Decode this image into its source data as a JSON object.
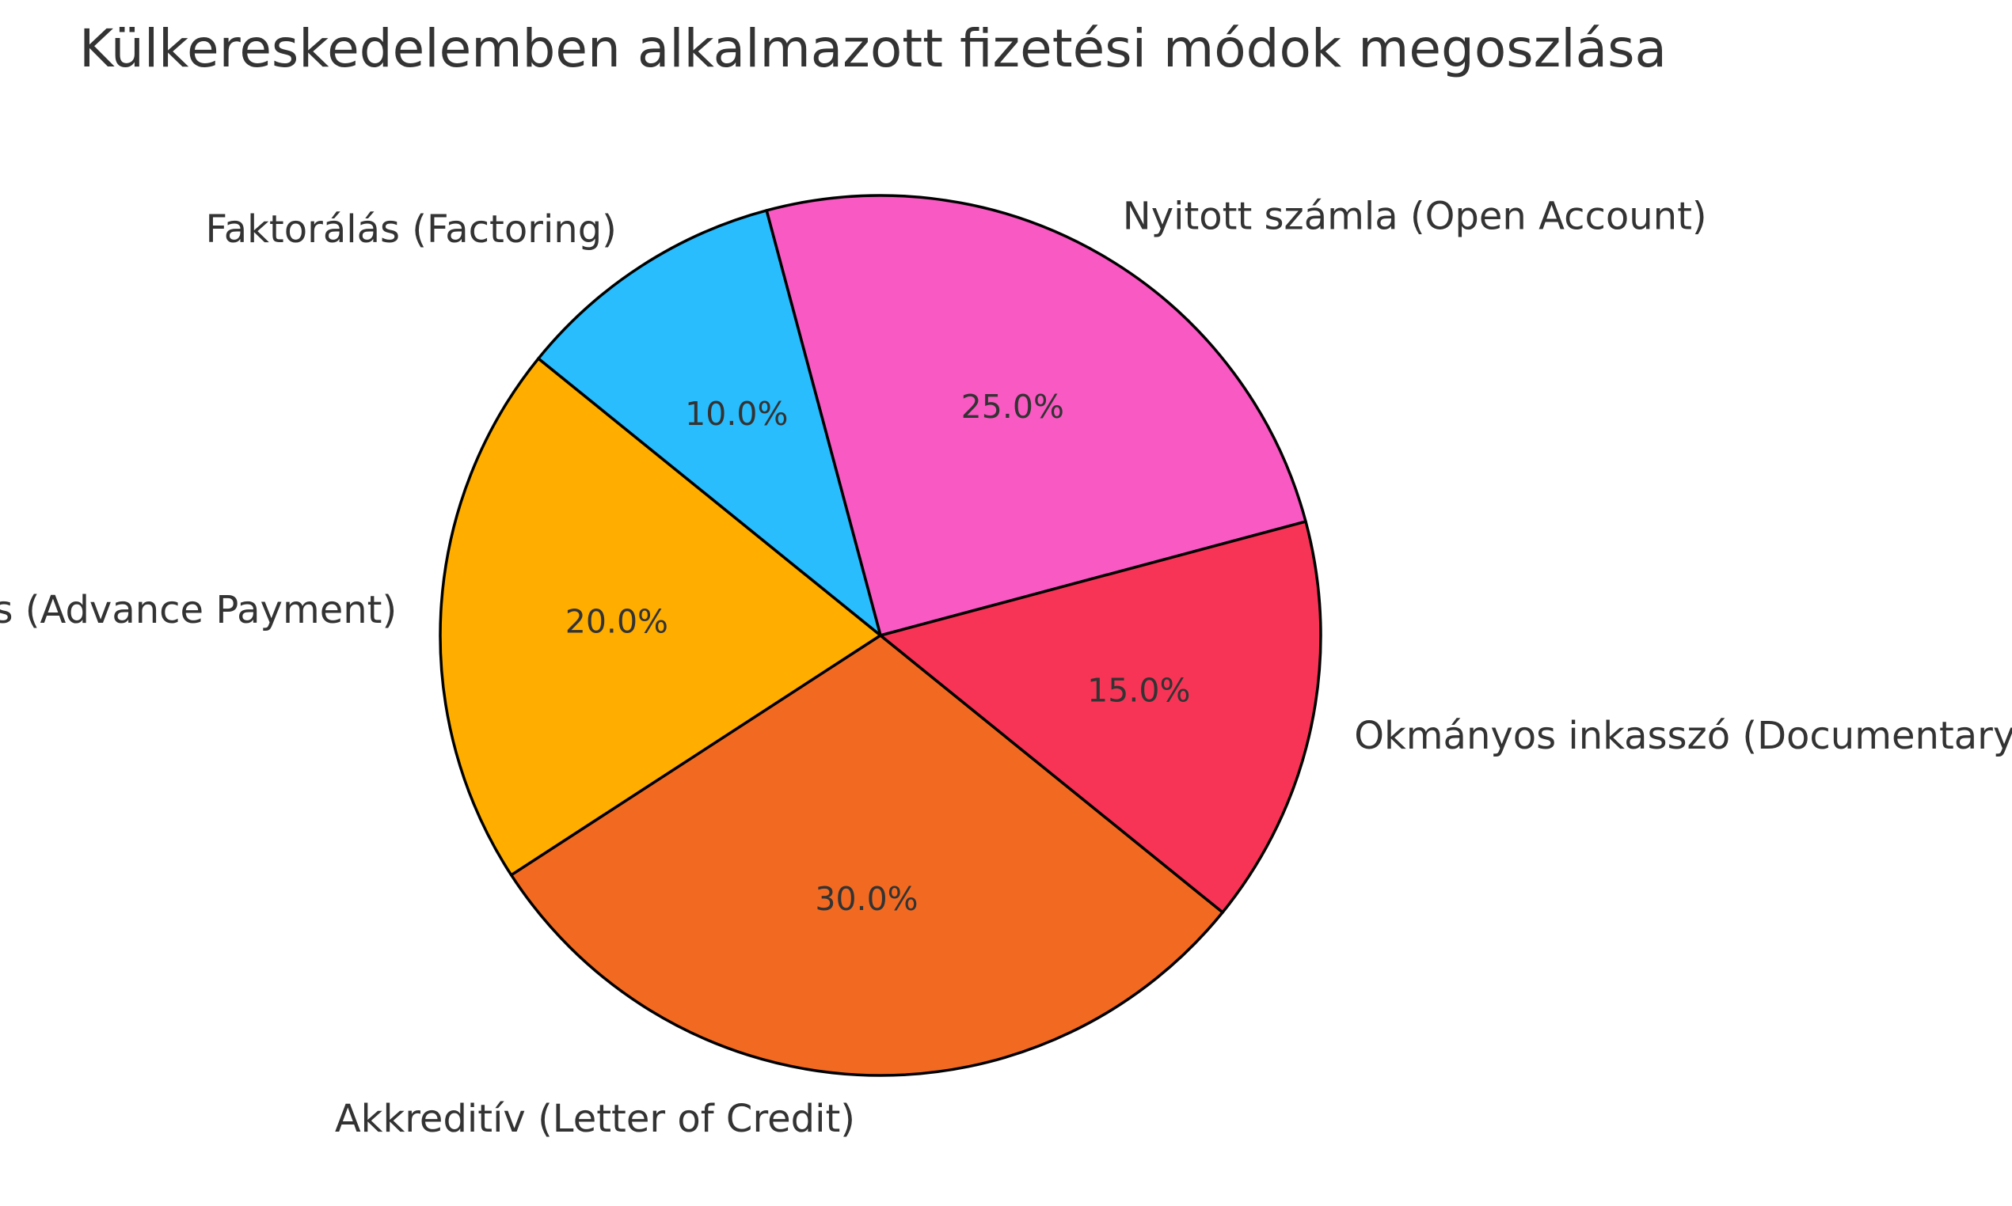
{
  "chart_data": {
    "type": "pie",
    "title": "Külkereskedelemben alkalmazott fizetési módok megoszlása",
    "slices": [
      {
        "label": "Nyitott számla (Open Account)",
        "value": 25.0,
        "pct_label": "25.0%",
        "color": "#F859C2"
      },
      {
        "label": "Faktorálás (Factoring)",
        "value": 10.0,
        "pct_label": "10.0%",
        "color": "#29BDFD"
      },
      {
        "label": "Előre fizetés (Advance Payment)",
        "value": 20.0,
        "pct_label": "20.0%",
        "color": "#FFAE00"
      },
      {
        "label": "Akkreditív (Letter of Credit)",
        "value": 30.0,
        "pct_label": "30.0%",
        "color": "#F26A21"
      },
      {
        "label": "Okmányos inkasszó (Documentary Collection)",
        "value": 15.0,
        "pct_label": "15.0%",
        "color": "#F73456"
      }
    ],
    "legend": "none",
    "start_angle_deg": 15,
    "direction": "counterclockwise"
  }
}
